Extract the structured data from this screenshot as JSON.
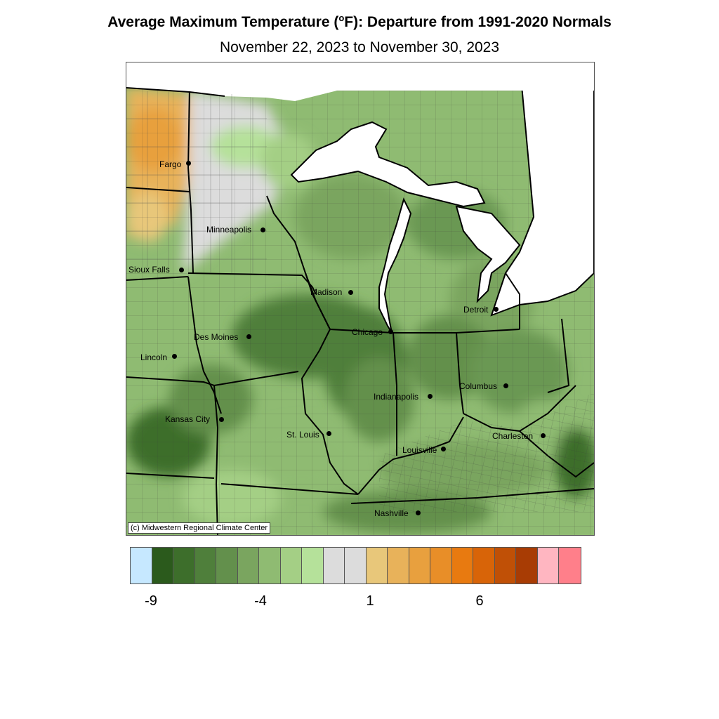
{
  "title_main": "Average Maximum Temperature (",
  "title_degree": "o",
  "title_rest": "F): Departure from 1991-2020 Normals",
  "subtitle": "November 22, 2023 to November 30, 2023",
  "credit": "(c) Midwestern Regional Climate Center",
  "cities": [
    {
      "name": "Fargo",
      "label": "Fargo"
    },
    {
      "name": "Minneapolis",
      "label": "Minneapolis"
    },
    {
      "name": "Sioux Falls",
      "label": "Sioux Falls"
    },
    {
      "name": "Madison",
      "label": "Madison"
    },
    {
      "name": "Detroit",
      "label": "Detroit"
    },
    {
      "name": "Chicago",
      "label": "Chicago"
    },
    {
      "name": "Des Moines",
      "label": "Des Moines"
    },
    {
      "name": "Lincoln",
      "label": "Lincoln"
    },
    {
      "name": "Columbus",
      "label": "Columbus"
    },
    {
      "name": "Indianapolis",
      "label": "Indianapolis"
    },
    {
      "name": "Kansas City",
      "label": "Kansas City"
    },
    {
      "name": "St. Louis",
      "label": "St. Louis"
    },
    {
      "name": "Charleston",
      "label": "Charleston"
    },
    {
      "name": "Louisville",
      "label": "Louisville"
    },
    {
      "name": "Nashville",
      "label": "Nashville"
    }
  ],
  "legend": {
    "colors": [
      "#c6e8ff",
      "#2b5a1c",
      "#3d6e2b",
      "#4f7f3b",
      "#63904c",
      "#7aa55f",
      "#8fbb72",
      "#a4cf85",
      "#b5e19a",
      "#dcdcdc",
      "#dcdcdc",
      "#e8c77a",
      "#e8b25a",
      "#e8a03e",
      "#e88e28",
      "#e87a10",
      "#d86408",
      "#c05006",
      "#a83c04",
      "#ffb6c1",
      "#ff7f8a"
    ],
    "tick_labels": [
      "-9",
      "-4",
      "1",
      "6"
    ]
  }
}
